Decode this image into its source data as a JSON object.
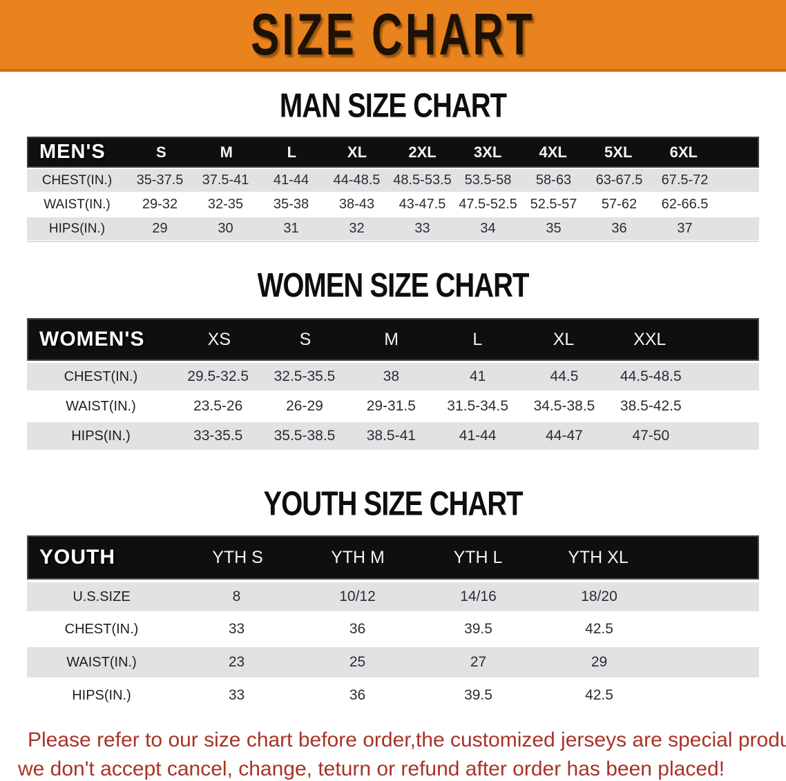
{
  "banner": {
    "title": "SIZE CHART"
  },
  "colors": {
    "banner_bg": "#E8831E",
    "header_band_bg": "#0F0F0F",
    "row_gray": "#E2E2E4",
    "disclaimer_red": "#A93226"
  },
  "men": {
    "heading": "MAN SIZE CHART",
    "label": "MEN'S",
    "columns": [
      "S",
      "M",
      "L",
      "XL",
      "2XL",
      "3XL",
      "4XL",
      "5XL",
      "6XL"
    ],
    "rows": [
      {
        "label": "CHEST(IN.)",
        "values": [
          "35-37.5",
          "37.5-41",
          "41-44",
          "44-48.5",
          "48.5-53.5",
          "53.5-58",
          "58-63",
          "63-67.5",
          "67.5-72"
        ]
      },
      {
        "label": "WAIST(IN.)",
        "values": [
          "29-32",
          "32-35",
          "35-38",
          "38-43",
          "43-47.5",
          "47.5-52.5",
          "52.5-57",
          "57-62",
          "62-66.5"
        ]
      },
      {
        "label": "HIPS(IN.)",
        "values": [
          "29",
          "30",
          "31",
          "32",
          "33",
          "34",
          "35",
          "36",
          "37"
        ]
      }
    ]
  },
  "women": {
    "heading": "WOMEN SIZE CHART",
    "label": "WOMEN'S",
    "columns": [
      "XS",
      "S",
      "M",
      "L",
      "XL",
      "XXL"
    ],
    "rows": [
      {
        "label": "CHEST(IN.)",
        "values": [
          "29.5-32.5",
          "32.5-35.5",
          "38",
          "41",
          "44.5",
          "44.5-48.5"
        ]
      },
      {
        "label": "WAIST(IN.)",
        "values": [
          "23.5-26",
          "26-29",
          "29-31.5",
          "31.5-34.5",
          "34.5-38.5",
          "38.5-42.5"
        ]
      },
      {
        "label": "HIPS(IN.)",
        "values": [
          "33-35.5",
          "35.5-38.5",
          "38.5-41",
          "41-44",
          "44-47",
          "47-50"
        ]
      }
    ]
  },
  "youth": {
    "heading": "YOUTH SIZE CHART",
    "label": "YOUTH",
    "columns": [
      "YTH S",
      "YTH M",
      "YTH L",
      "YTH XL"
    ],
    "rows": [
      {
        "label": "U.S.SIZE",
        "values": [
          "8",
          "10/12",
          "14/16",
          "18/20"
        ]
      },
      {
        "label": "CHEST(IN.)",
        "values": [
          "33",
          "36",
          "39.5",
          "42.5"
        ]
      },
      {
        "label": "WAIST(IN.)",
        "values": [
          "23",
          "25",
          "27",
          "29"
        ]
      },
      {
        "label": "HIPS(IN.)",
        "values": [
          "33",
          "36",
          "39.5",
          "42.5"
        ]
      }
    ]
  },
  "disclaimer": {
    "line1": "Please refer to our size chart before order,the customized jerseys are special products,",
    "line2": "we don't accept cancel, change, teturn or refund after order has been placed!"
  }
}
